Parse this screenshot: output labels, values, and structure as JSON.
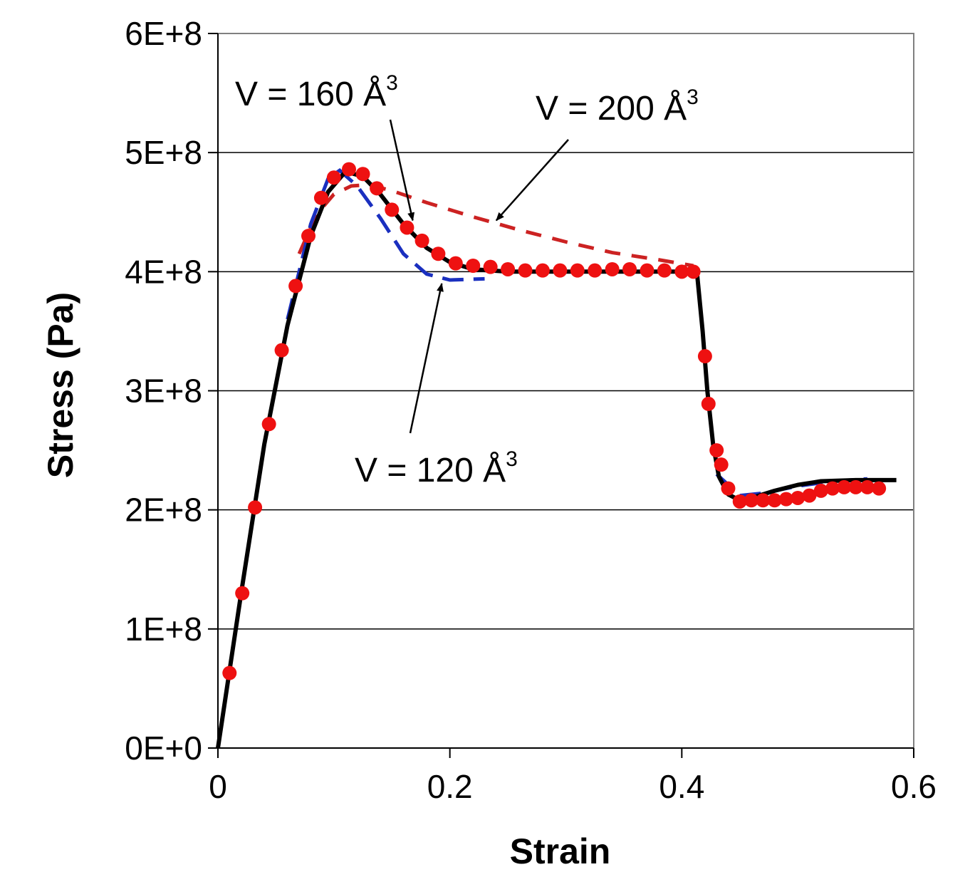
{
  "chart_data": {
    "type": "line",
    "xlabel": "Strain",
    "ylabel": "Stress (Pa)",
    "xlim": [
      0,
      0.6
    ],
    "ylim": [
      0,
      600000000
    ],
    "x_ticks": [
      "0",
      "0.2",
      "0.4",
      "0.6"
    ],
    "x_tick_values": [
      0,
      0.2,
      0.4,
      0.6
    ],
    "y_ticks": [
      "0E+0",
      "1E+8",
      "2E+8",
      "3E+8",
      "4E+8",
      "5E+8",
      "6E+8"
    ],
    "y_tick_values": [
      0,
      100000000,
      200000000,
      300000000,
      400000000,
      500000000,
      600000000
    ],
    "grid": "horizontal",
    "colors": {
      "black_line": "#000000",
      "red_dashed": "#cc2222",
      "blue_dashed": "#1a2fbf",
      "red_dots": "#ee1111",
      "annotation_arrow": "#000000"
    },
    "series": [
      {
        "style": "solid-black",
        "x": [
          0,
          0.02,
          0.04,
          0.06,
          0.08,
          0.095,
          0.11,
          0.125,
          0.14,
          0.16,
          0.18,
          0.2,
          0.22,
          0.25,
          0.3,
          0.35,
          0.4,
          0.413,
          0.418,
          0.422,
          0.427,
          0.432,
          0.44,
          0.45,
          0.46,
          0.48,
          0.5,
          0.52,
          0.55,
          0.585
        ],
        "y": [
          0,
          130000000,
          255000000,
          355000000,
          430000000,
          467000000,
          484000000,
          480000000,
          465000000,
          440000000,
          420000000,
          408000000,
          402000000,
          400000000,
          400000000,
          400000000,
          400000000,
          400000000,
          350000000,
          300000000,
          255000000,
          228000000,
          213000000,
          208000000,
          210000000,
          216000000,
          221000000,
          224000000,
          225000000,
          225000000
        ]
      },
      {
        "style": "dashed-red",
        "x": [
          0.07,
          0.085,
          0.1,
          0.115,
          0.13,
          0.15,
          0.18,
          0.22,
          0.26,
          0.3,
          0.34,
          0.38,
          0.41
        ],
        "y": [
          415000000,
          448000000,
          465000000,
          472000000,
          473000000,
          468000000,
          458000000,
          446000000,
          435000000,
          425000000,
          416000000,
          410000000,
          405000000
        ]
      },
      {
        "style": "dashed-blue",
        "x": [
          0.06,
          0.08,
          0.095,
          0.105,
          0.12,
          0.14,
          0.16,
          0.18,
          0.2,
          0.23
        ],
        "y": [
          360000000,
          440000000,
          478000000,
          485000000,
          472000000,
          445000000,
          415000000,
          398000000,
          393000000,
          394000000
        ]
      },
      {
        "style": "dashed-blue",
        "x": [
          0.43,
          0.45,
          0.47,
          0.5,
          0.53,
          0.56
        ],
        "y": [
          230000000,
          212000000,
          214000000,
          220000000,
          224000000,
          226000000
        ]
      },
      {
        "style": "red-dots",
        "x": [
          0.01,
          0.021,
          0.032,
          0.044,
          0.055,
          0.067,
          0.078,
          0.089,
          0.1,
          0.113,
          0.125,
          0.137,
          0.15,
          0.163,
          0.176,
          0.19,
          0.205,
          0.22,
          0.235,
          0.25,
          0.265,
          0.28,
          0.295,
          0.31,
          0.325,
          0.34,
          0.355,
          0.37,
          0.385,
          0.4,
          0.41,
          0.42,
          0.423,
          0.43,
          0.434,
          0.44,
          0.45,
          0.46,
          0.47,
          0.48,
          0.49,
          0.5,
          0.51,
          0.52,
          0.53,
          0.54,
          0.55,
          0.56,
          0.57
        ],
        "y": [
          63000000,
          130000000,
          202000000,
          272000000,
          334000000,
          388000000,
          430000000,
          462000000,
          479000000,
          486000000,
          482000000,
          470000000,
          452000000,
          437000000,
          426000000,
          415000000,
          407000000,
          405000000,
          404000000,
          402000000,
          401000000,
          401000000,
          401000000,
          401000000,
          401000000,
          402000000,
          402000000,
          401000000,
          401000000,
          400000000,
          400000000,
          329000000,
          289000000,
          250000000,
          238000000,
          218000000,
          207000000,
          208000000,
          208000000,
          208000000,
          209000000,
          210000000,
          212000000,
          216000000,
          218000000,
          219000000,
          219000000,
          219000000,
          218000000
        ]
      }
    ],
    "annotations": [
      {
        "text": "V = 160 Å",
        "sup": "3",
        "tip": [
          0.168,
          443000000
        ]
      },
      {
        "text": "V = 200 Å",
        "sup": "3",
        "tip": [
          0.24,
          443000000
        ]
      },
      {
        "text": "V = 120 Å",
        "sup": "3",
        "tip": [
          0.193,
          390000000
        ]
      }
    ]
  }
}
